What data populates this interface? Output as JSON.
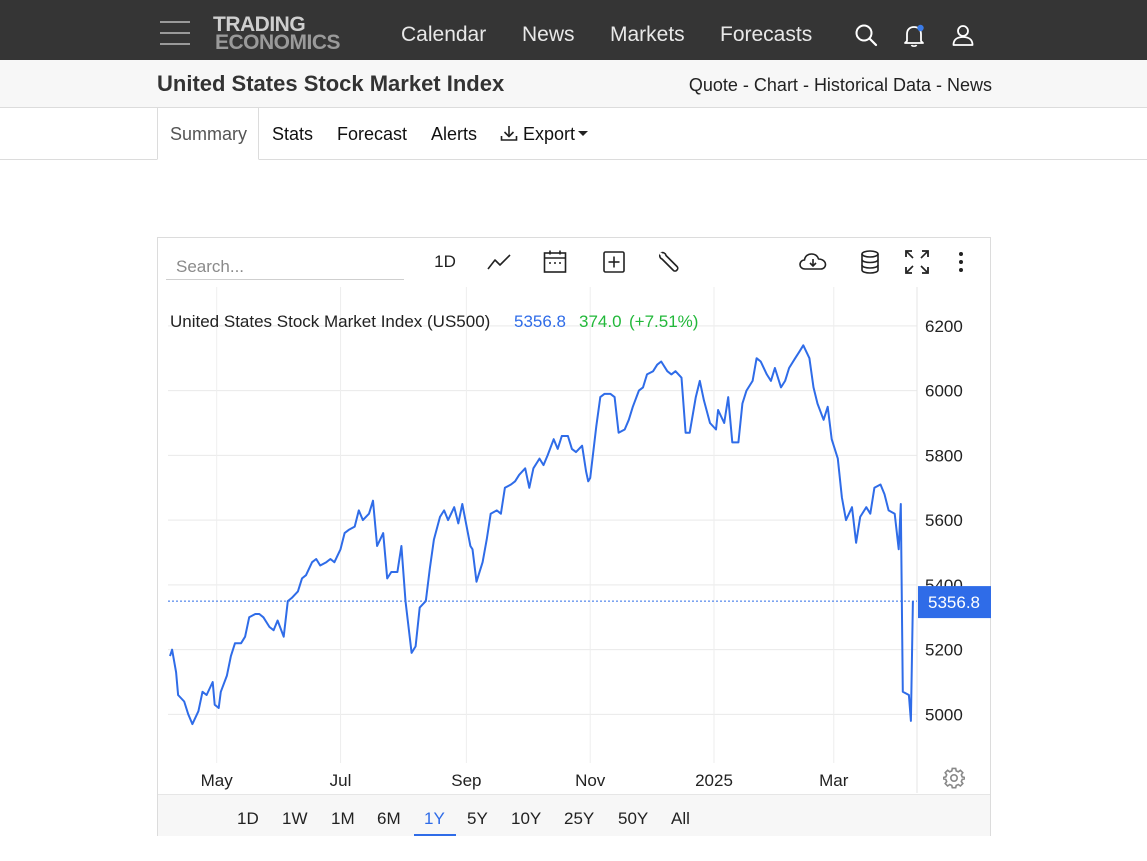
{
  "header": {
    "logo_line1": "TRADING",
    "logo_line2": "ECONOMICS",
    "nav": [
      "Calendar",
      "News",
      "Markets",
      "Forecasts"
    ],
    "icons": [
      "menu-icon",
      "search-icon",
      "bell-icon",
      "user-icon"
    ]
  },
  "page": {
    "title": "United States Stock Market Index",
    "quick_links": [
      "Quote",
      "Chart",
      "Historical Data",
      "News"
    ],
    "quick_links_sep": "-"
  },
  "tabs": {
    "items": [
      "Summary",
      "Stats",
      "Forecast",
      "Alerts",
      "Export"
    ],
    "active": "Summary"
  },
  "toolbar": {
    "search_placeholder": "Search...",
    "interval": "1D",
    "icons": [
      "line-chart-icon",
      "calendar-icon",
      "add-box-icon",
      "wrench-icon",
      "cloud-download-icon",
      "database-icon",
      "fullscreen-icon",
      "more-vert-icon"
    ]
  },
  "ranges": {
    "items": [
      "1D",
      "1W",
      "1M",
      "6M",
      "1Y",
      "5Y",
      "10Y",
      "25Y",
      "50Y",
      "All"
    ],
    "active": "1Y"
  },
  "colors": {
    "line": "#2f6ce8",
    "change_positive": "#22b83a",
    "topbar": "#353535"
  },
  "chart_data": {
    "type": "line",
    "title": "United States Stock Market Index (US500)",
    "last_value": "5356.8",
    "change": "374.0",
    "change_pct": "(+7.51%)",
    "price_label": "5356.8",
    "x_tick_labels": [
      "May",
      "Jul",
      "Sep",
      "Nov",
      "2025",
      "Mar"
    ],
    "x_ticks": [
      "2024-05-01",
      "2024-07-01",
      "2024-09-01",
      "2024-11-01",
      "2025-01-01",
      "2025-03-01"
    ],
    "y_ticks": [
      5000,
      5200,
      5400,
      5600,
      5800,
      6000,
      6200
    ],
    "ylim": [
      4850,
      6320
    ],
    "xlim": [
      "2024-04-07",
      "2025-04-11"
    ],
    "grid": true,
    "series": [
      {
        "x": [
          "2024-04-08",
          "2024-04-09",
          "2024-04-11",
          "2024-04-12",
          "2024-04-15",
          "2024-04-17",
          "2024-04-19",
          "2024-04-22",
          "2024-04-24",
          "2024-04-26",
          "2024-04-29",
          "2024-04-30",
          "2024-05-02",
          "2024-05-03",
          "2024-05-06",
          "2024-05-08",
          "2024-05-10",
          "2024-05-13",
          "2024-05-15",
          "2024-05-17",
          "2024-05-20",
          "2024-05-22",
          "2024-05-24",
          "2024-05-27",
          "2024-05-29",
          "2024-05-31",
          "2024-06-03",
          "2024-06-05",
          "2024-06-07",
          "2024-06-10",
          "2024-06-12",
          "2024-06-14",
          "2024-06-17",
          "2024-06-19",
          "2024-06-21",
          "2024-06-24",
          "2024-06-26",
          "2024-06-28",
          "2024-07-01",
          "2024-07-03",
          "2024-07-05",
          "2024-07-08",
          "2024-07-10",
          "2024-07-12",
          "2024-07-15",
          "2024-07-17",
          "2024-07-19",
          "2024-07-22",
          "2024-07-24",
          "2024-07-26",
          "2024-07-29",
          "2024-07-31",
          "2024-08-02",
          "2024-08-05",
          "2024-08-07",
          "2024-08-09",
          "2024-08-12",
          "2024-08-14",
          "2024-08-16",
          "2024-08-19",
          "2024-08-21",
          "2024-08-23",
          "2024-08-26",
          "2024-08-28",
          "2024-08-30",
          "2024-09-03",
          "2024-09-04",
          "2024-09-06",
          "2024-09-09",
          "2024-09-11",
          "2024-09-13",
          "2024-09-16",
          "2024-09-18",
          "2024-09-20",
          "2024-09-23",
          "2024-09-25",
          "2024-09-27",
          "2024-09-30",
          "2024-10-02",
          "2024-10-04",
          "2024-10-07",
          "2024-10-09",
          "2024-10-11",
          "2024-10-14",
          "2024-10-16",
          "2024-10-18",
          "2024-10-21",
          "2024-10-23",
          "2024-10-25",
          "2024-10-28",
          "2024-10-30",
          "2024-10-31",
          "2024-11-01",
          "2024-11-04",
          "2024-11-06",
          "2024-11-08",
          "2024-11-11",
          "2024-11-13",
          "2024-11-15",
          "2024-11-18",
          "2024-11-20",
          "2024-11-22",
          "2024-11-25",
          "2024-11-27",
          "2024-11-29",
          "2024-12-02",
          "2024-12-04",
          "2024-12-06",
          "2024-12-09",
          "2024-12-11",
          "2024-12-13",
          "2024-12-16",
          "2024-12-18",
          "2024-12-20",
          "2024-12-23",
          "2024-12-25",
          "2024-12-27",
          "2024-12-30",
          "2025-01-02",
          "2025-01-03",
          "2025-01-06",
          "2025-01-08",
          "2025-01-10",
          "2025-01-13",
          "2025-01-15",
          "2025-01-17",
          "2025-01-20",
          "2025-01-22",
          "2025-01-24",
          "2025-01-27",
          "2025-01-29",
          "2025-01-31",
          "2025-02-03",
          "2025-02-05",
          "2025-02-07",
          "2025-02-10",
          "2025-02-12",
          "2025-02-14",
          "2025-02-17",
          "2025-02-19",
          "2025-02-21",
          "2025-02-24",
          "2025-02-26",
          "2025-02-28",
          "2025-03-03",
          "2025-03-05",
          "2025-03-07",
          "2025-03-10",
          "2025-03-12",
          "2025-03-14",
          "2025-03-17",
          "2025-03-19",
          "2025-03-21",
          "2025-03-24",
          "2025-03-26",
          "2025-03-28",
          "2025-03-31",
          "2025-04-02",
          "2025-04-03",
          "2025-04-04",
          "2025-04-07",
          "2025-04-08",
          "2025-04-09"
        ],
        "y": [
          5180,
          5200,
          5130,
          5060,
          5040,
          5000,
          4970,
          5010,
          5070,
          5060,
          5100,
          5030,
          5020,
          5070,
          5120,
          5180,
          5220,
          5220,
          5240,
          5300,
          5310,
          5310,
          5300,
          5270,
          5260,
          5290,
          5240,
          5350,
          5360,
          5380,
          5420,
          5430,
          5470,
          5480,
          5460,
          5470,
          5480,
          5470,
          5510,
          5560,
          5570,
          5580,
          5630,
          5600,
          5620,
          5660,
          5520,
          5560,
          5420,
          5440,
          5440,
          5520,
          5350,
          5190,
          5210,
          5330,
          5350,
          5450,
          5540,
          5610,
          5630,
          5600,
          5640,
          5590,
          5650,
          5520,
          5510,
          5410,
          5470,
          5540,
          5620,
          5630,
          5620,
          5700,
          5710,
          5720,
          5740,
          5760,
          5700,
          5760,
          5790,
          5770,
          5800,
          5850,
          5820,
          5860,
          5860,
          5820,
          5810,
          5830,
          5750,
          5720,
          5730,
          5890,
          5980,
          5990,
          5990,
          5980,
          5870,
          5880,
          5910,
          5950,
          6000,
          6010,
          6050,
          6060,
          6080,
          6090,
          6060,
          6050,
          6060,
          6040,
          5870,
          5870,
          5980,
          6030,
          5970,
          5900,
          5880,
          5940,
          5900,
          5980,
          5840,
          5840,
          5960,
          6000,
          6030,
          6100,
          6090,
          6050,
          6030,
          6070,
          6010,
          6030,
          6070,
          6100,
          6120,
          6140,
          6100,
          6010,
          5960,
          5910,
          5950,
          5850,
          5790,
          5670,
          5600,
          5640,
          5530,
          5610,
          5640,
          5620,
          5700,
          5710,
          5680,
          5630,
          5620,
          5510,
          5650,
          5070,
          5060,
          4980,
          5350
        ]
      }
    ]
  }
}
